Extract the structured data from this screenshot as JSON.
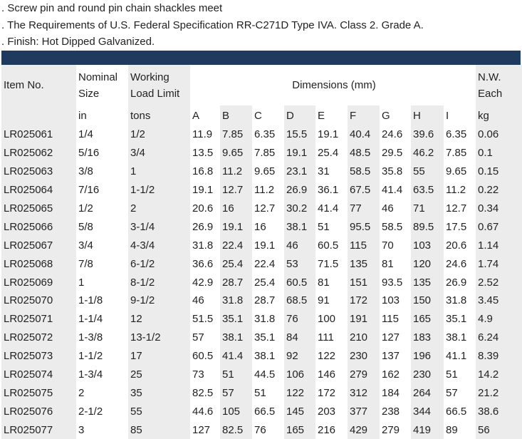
{
  "notes": [
    ". Screw pin and round pin chain shackles meet",
    ". The Requirements of U.S. Federal Specification RR-C271D Type IVA. Class 2. Grade A.",
    ".  Finish: Hot Dipped Galvanized."
  ],
  "colors": {
    "bar": "#1f3a5f",
    "shade": "#ececec"
  },
  "header": {
    "item": "Item No.",
    "nominal_line1": "Nominal",
    "nominal_line2": "Size",
    "working_line1": "Working",
    "working_line2": "Load Limit",
    "dimensions": "Dimensions (mm)",
    "nw_line1": "N.W.",
    "nw_line2": "Each",
    "unit_size": "in",
    "unit_load": "tons",
    "dims": [
      "A",
      "B",
      "C",
      "D",
      "E",
      "F",
      "G",
      "H",
      "I"
    ],
    "unit_weight": "kg"
  },
  "rows": [
    {
      "item": "LR025061",
      "size": "1/4",
      "load": "1/2",
      "dims": [
        "11.9",
        "7.85",
        "6.35",
        "15.5",
        "19.1",
        "40.4",
        "24.6",
        "39.6",
        "6.35"
      ],
      "weight": "0.06"
    },
    {
      "item": "LR025062",
      "size": "5/16",
      "load": "3/4",
      "dims": [
        "13.5",
        "9.65",
        "7.85",
        "19.1",
        "25.4",
        "48.5",
        "29.5",
        "46.2",
        "7.85"
      ],
      "weight": "0.1"
    },
    {
      "item": "LR025063",
      "size": "3/8",
      "load": "1",
      "dims": [
        "16.8",
        "11.2",
        "9.65",
        "23.1",
        "31",
        "58.5",
        "35.8",
        "55",
        "9.65"
      ],
      "weight": "0.15"
    },
    {
      "item": "LR025064",
      "size": "7/16",
      "load": "1-1/2",
      "dims": [
        "19.1",
        "12.7",
        "11.2",
        "26.9",
        "36.1",
        "67.5",
        "41.4",
        "63.5",
        "11.2"
      ],
      "weight": "0.22"
    },
    {
      "item": "LR025065",
      "size": "1/2",
      "load": "2",
      "dims": [
        "20.6",
        "16",
        "12.7",
        "30.2",
        "41.4",
        "77",
        "46",
        "71",
        "12.7"
      ],
      "weight": "0.34"
    },
    {
      "item": "LR025066",
      "size": "5/8",
      "load": "3-1/4",
      "dims": [
        "26.9",
        "19.1",
        "16",
        "38.1",
        "51",
        "95.5",
        "58.5",
        "89.5",
        "17.5"
      ],
      "weight": "0.67"
    },
    {
      "item": "LR025067",
      "size": "3/4",
      "load": "4-3/4",
      "dims": [
        "31.8",
        "22.4",
        "19.1",
        "46",
        "60.5",
        "115",
        "70",
        "103",
        "20.6"
      ],
      "weight": "1.14"
    },
    {
      "item": "LR025068",
      "size": "7/8",
      "load": "6-1/2",
      "dims": [
        "36.6",
        "25.4",
        "22.4",
        "53",
        "71.5",
        "135",
        "81",
        "120",
        "24.6"
      ],
      "weight": "1.74"
    },
    {
      "item": "LR025069",
      "size": "1",
      "load": "8-1/2",
      "dims": [
        "42.9",
        "28.7",
        "25.4",
        "60.5",
        "81",
        "151",
        "93.5",
        "135",
        "26.9"
      ],
      "weight": "2.52"
    },
    {
      "item": "LR025070",
      "size": "1-1/8",
      "load": "9-1/2",
      "dims": [
        "46",
        "31.8",
        "28.7",
        "68.5",
        "91",
        "172",
        "103",
        "150",
        "31.8"
      ],
      "weight": "3.45"
    },
    {
      "item": "LR025071",
      "size": "1-1/4",
      "load": "12",
      "dims": [
        "51.5",
        "35.1",
        "31.8",
        "76",
        "100",
        "191",
        "115",
        "165",
        "35.1"
      ],
      "weight": "4.9"
    },
    {
      "item": "LR025072",
      "size": "1-3/8",
      "load": "13-1/2",
      "dims": [
        "57",
        "38.1",
        "35.1",
        "84",
        "111",
        "210",
        "127",
        "183",
        "38.1"
      ],
      "weight": "6.24"
    },
    {
      "item": "LR025073",
      "size": "1-1/2",
      "load": "17",
      "dims": [
        "60.5",
        "41.4",
        "38.1",
        "92",
        "122",
        "230",
        "137",
        "196",
        "41.1"
      ],
      "weight": "8.39"
    },
    {
      "item": "LR025074",
      "size": "1-3/4",
      "load": "25",
      "dims": [
        "73",
        "51",
        "44.5",
        "106",
        "146",
        "279",
        "162",
        "230",
        "51"
      ],
      "weight": "14.2"
    },
    {
      "item": "LR025075",
      "size": "2",
      "load": "35",
      "dims": [
        "82.5",
        "57",
        "51",
        "122",
        "172",
        "312",
        "184",
        "264",
        "57"
      ],
      "weight": "21.2"
    },
    {
      "item": "LR025076",
      "size": "2-1/2",
      "load": "55",
      "dims": [
        "44.6",
        "105",
        "66.5",
        "145",
        "203",
        "377",
        "238",
        "344",
        "66.5"
      ],
      "weight": "38.6"
    },
    {
      "item": "LR025077",
      "size": "3",
      "load": "85",
      "dims": [
        "127",
        "82.5",
        "76",
        "165",
        "216",
        "429",
        "279",
        "419",
        "89"
      ],
      "weight": "56"
    }
  ]
}
